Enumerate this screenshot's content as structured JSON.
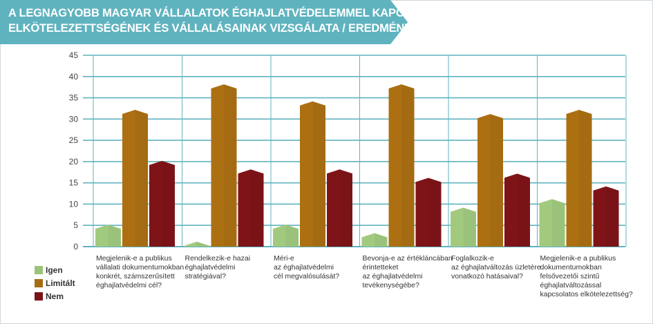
{
  "title_lines": [
    "A LEGNAGYOBB MAGYAR VÁLLALATOK  ÉGHAJLATVÉDELEMMEL KAPCSOLATOS",
    "ELKÖTELEZETTSÉGÉNEK ÉS VÁLLALÁSAINAK VIZSGÁLATA / EREDMÉNYEK"
  ],
  "colors": {
    "banner": "#5fb3bf",
    "gridline": "#5fb3bf",
    "axis_text": "#444444"
  },
  "chart_data": {
    "type": "bar",
    "ylim": [
      0,
      45
    ],
    "yticks": [
      0,
      5,
      10,
      15,
      20,
      25,
      30,
      35,
      40,
      45
    ],
    "grid": true,
    "legend_position": "bottom-left",
    "categories": [
      [
        "Megjelenik-e a publikus",
        "vállalati dokumentumokban",
        "konkrét, számszerűsített",
        "éghajlatvédelmi cél?"
      ],
      [
        "Rendelkezik-e hazai",
        "éghajlatvédelmi",
        "stratégiával?"
      ],
      [
        "Méri-e",
        "az éghajlatvédelmi",
        "cél megvalósulását?"
      ],
      [
        "Bevonja-e az értékláncában",
        "érintetteket",
        "az éghajlatvédelmi",
        "tevékenységébe?"
      ],
      [
        "Foglalkozik-e",
        "az éghajlatváltozás üzletére",
        "vonatkozó hatásaival?"
      ],
      [
        "Megjelenik-e a publikus",
        "dokumentumokban",
        "felsővezetői szintű",
        "éghajlatváltozással",
        "kapcsolatos elkötelezettség?"
      ]
    ],
    "series": [
      {
        "name": "Igen",
        "color": "#9bc27a",
        "values": [
          5,
          1,
          5,
          3,
          9,
          11
        ]
      },
      {
        "name": "Limitált",
        "color": "#a56b12",
        "values": [
          32,
          38,
          34,
          38,
          31,
          32
        ]
      },
      {
        "name": "Nem",
        "color": "#7a1318",
        "values": [
          20,
          18,
          18,
          16,
          17,
          14
        ]
      }
    ]
  }
}
